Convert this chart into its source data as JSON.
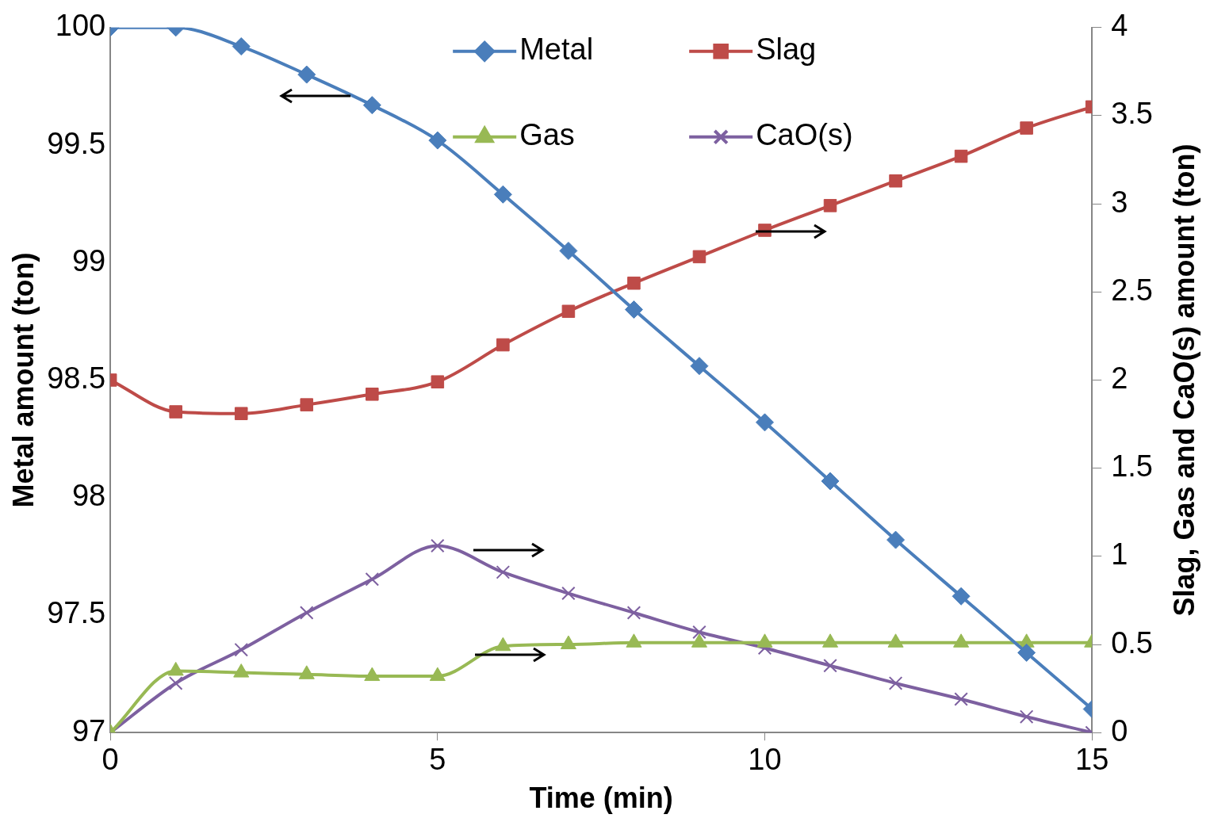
{
  "chart_data": {
    "type": "line",
    "xlabel": "Time (min)",
    "ylabel": "Metal amount (ton)",
    "y2label": "Slag, Gas and CaO(s) amount (ton)",
    "x": [
      0,
      1,
      2,
      3,
      4,
      5,
      6,
      7,
      8,
      9,
      10,
      11,
      12,
      13,
      14,
      15
    ],
    "xlim": [
      0,
      15
    ],
    "xticks": [
      0,
      5,
      10,
      15
    ],
    "ylim": [
      97,
      100
    ],
    "yticks": [
      97,
      97.5,
      98,
      98.5,
      99,
      99.5,
      100
    ],
    "y2lim": [
      0,
      4
    ],
    "y2ticks": [
      0,
      0.5,
      1,
      1.5,
      2,
      2.5,
      3,
      3.5,
      4
    ],
    "grid": false,
    "legend": "top",
    "series": [
      {
        "name": "Metal",
        "color": "#4a7ebb",
        "marker": "diamond",
        "values": [
          100,
          100,
          99.92,
          99.8,
          99.67,
          99.52,
          99.29,
          99.05,
          98.8,
          98.56,
          98.32,
          98.07,
          97.82,
          97.58,
          97.34,
          97.1
        ]
      },
      {
        "name": "Slag",
        "color": "#be4b48",
        "marker": "square",
        "axis": "y2",
        "values": [
          2,
          1.82,
          1.81,
          1.86,
          1.92,
          1.99,
          2.2,
          2.39,
          2.55,
          2.7,
          2.85,
          2.99,
          3.13,
          3.27,
          3.43,
          3.55
        ]
      },
      {
        "name": "Gas",
        "color": "#98b954",
        "marker": "triangle",
        "axis": "y2",
        "values": [
          0,
          0.35,
          0.34,
          0.33,
          0.32,
          0.32,
          0.49,
          0.5,
          0.51,
          0.51,
          0.51,
          0.51,
          0.51,
          0.51,
          0.51,
          0.51
        ]
      },
      {
        "name": "CaO(s)",
        "color": "#7d60a0",
        "marker": "cross",
        "axis": "y2",
        "values": [
          0,
          0.28,
          0.47,
          0.68,
          0.87,
          1.06,
          0.91,
          0.79,
          0.68,
          0.57,
          0.48,
          0.38,
          0.28,
          0.19,
          0.09,
          0
        ]
      }
    ]
  }
}
